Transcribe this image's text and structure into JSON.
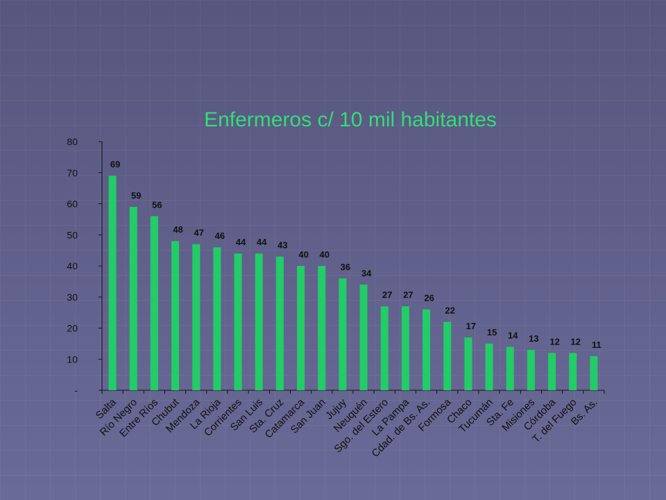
{
  "chart_data": {
    "type": "bar",
    "title": "Enfermeros c/ 10 mil habitantes",
    "xlabel": "",
    "ylabel": "",
    "ylim": [
      0,
      80
    ],
    "yticks": [
      "-",
      "10",
      "20",
      "30",
      "40",
      "50",
      "60",
      "70",
      "80"
    ],
    "categories": [
      "Salta",
      "Río Negro",
      "Entre Ríos",
      "Chubut",
      "Mendoza",
      "La Rioja",
      "Corrientes",
      "San Luis",
      "Sta. Cruz",
      "Catamarca",
      "San Juan",
      "Jujuy",
      "Neuquén",
      "Sgo. del Estero",
      "La Pampa",
      "Cdad. de Bs. As.",
      "Formosa",
      "Chaco",
      "Tucumán",
      "Sta. Fe",
      "Misiones",
      "Córdoba",
      "T. del Fuego",
      "Bs. As."
    ],
    "values": [
      69,
      59,
      56,
      48,
      47,
      46,
      44,
      44,
      43,
      40,
      40,
      36,
      34,
      27,
      27,
      26,
      22,
      17,
      15,
      14,
      13,
      12,
      12,
      11
    ],
    "grid": false,
    "legend": "none",
    "colors": {
      "bar": "#22cc66",
      "title": "#33dd77",
      "axis_text": "#111111",
      "background": "#5a5a86"
    }
  }
}
